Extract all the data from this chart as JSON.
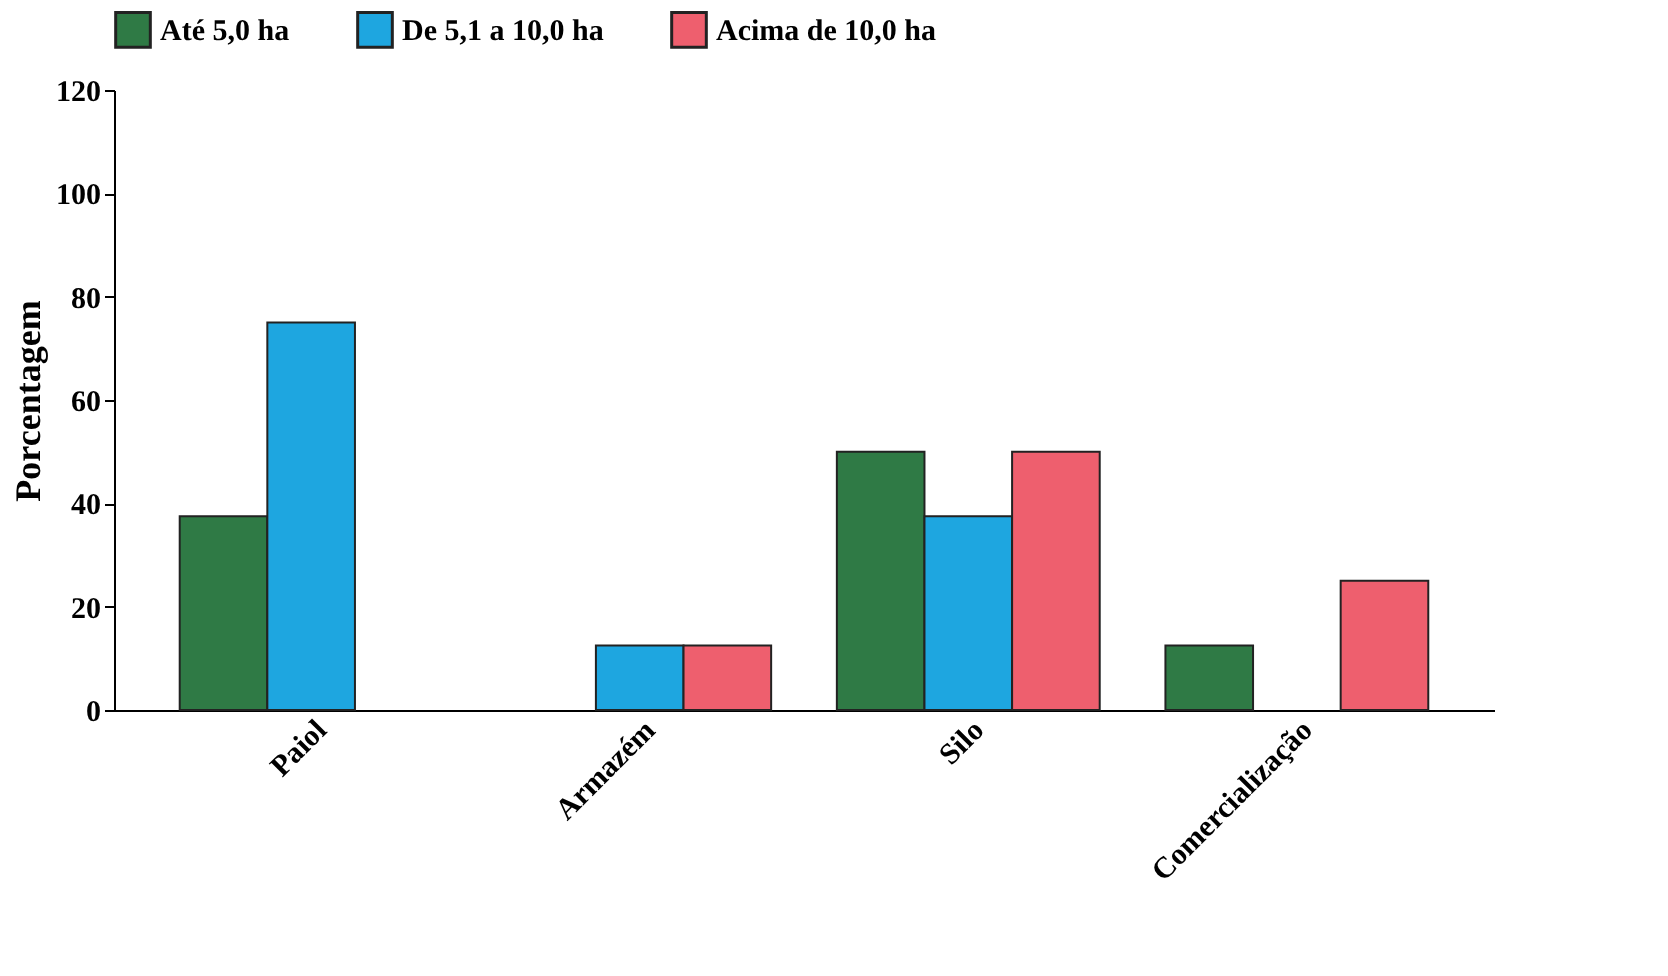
{
  "chart_data": {
    "type": "bar",
    "ylabel": "Porcentagem",
    "categories": [
      "Paiol",
      "Armazém",
      "Silo",
      "Comercialização"
    ],
    "series": [
      {
        "name": "Até 5,0 ha",
        "color": "#2f7a45",
        "values": [
          37.5,
          null,
          50,
          12.5
        ]
      },
      {
        "name": "De 5,1 a 10,0 ha",
        "color": "#1ea6e0",
        "values": [
          75,
          12.5,
          37.5,
          null
        ]
      },
      {
        "name": "Acima de 10,0 ha",
        "color": "#ee5f6e",
        "values": [
          null,
          12.5,
          50,
          25
        ]
      }
    ],
    "ylim": [
      0,
      120
    ],
    "yticks": [
      0,
      20,
      40,
      60,
      80,
      100,
      120
    ],
    "grid": false,
    "legend": "top"
  }
}
